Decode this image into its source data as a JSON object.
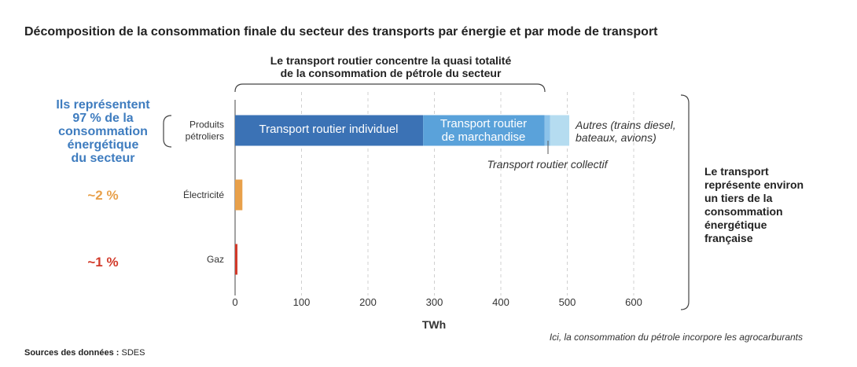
{
  "title": "Décomposition de la consommation finale du secteur des transports par énergie et par mode de transport",
  "annotation_top": [
    "Le transport routier concentre la quasi totalité",
    "de la consommation de pétrole du secteur"
  ],
  "annotation_left": {
    "petrole": [
      "Ils représentent",
      "97 % de la",
      "consommation",
      "énergétique",
      "du secteur"
    ],
    "electricite": "~2 %",
    "gaz": "~1 %"
  },
  "annotation_right": [
    "Le transport",
    "représente environ",
    "un tiers de la",
    "consommation",
    "énergétique",
    "française"
  ],
  "segment_labels": {
    "individuel": [
      "Transport routier individuel"
    ],
    "marchandise": [
      "Transport routier",
      "de marchandise"
    ],
    "collectif": "Transport routier collectif",
    "autres": [
      "Autres (trains diesel,",
      "bateaux, avions)"
    ]
  },
  "note": "Ici, la consommation du pétrole incorpore les agrocarburants",
  "source_label": "Sources des données :",
  "source_value": " SDES",
  "colors": {
    "individuel": "#3b72b5",
    "marchandise": "#5aa2da",
    "collectif": "#8cc3ea",
    "autres": "#b5dcf0",
    "electricite": "#e8a04a",
    "gaz": "#d23a2a",
    "blue_text": "#3e7cbf"
  },
  "chart_data": {
    "type": "bar",
    "orientation": "horizontal",
    "stacked": true,
    "categories": [
      [
        "Produits",
        "pétroliers"
      ],
      [
        "Électricité"
      ],
      [
        "Gaz"
      ]
    ],
    "series": [
      {
        "name": "Transport routier individuel",
        "values": [
          283,
          0,
          0
        ],
        "color": "#3b72b5"
      },
      {
        "name": "Transport routier de marchandise",
        "values": [
          183,
          0,
          0
        ],
        "color": "#5aa2da"
      },
      {
        "name": "Transport routier collectif",
        "values": [
          8,
          0,
          0
        ],
        "color": "#8cc3ea"
      },
      {
        "name": "Autres (trains diesel, bateaux, avions)",
        "values": [
          29,
          0,
          0
        ],
        "color": "#b5dcf0"
      },
      {
        "name": "Électricité",
        "values": [
          0,
          11,
          0
        ],
        "color": "#e8a04a"
      },
      {
        "name": "Gaz",
        "values": [
          0,
          0,
          3
        ],
        "color": "#d23a2a"
      }
    ],
    "xlabel": "TWh",
    "xlim": [
      0,
      650
    ],
    "xticks": [
      0,
      100,
      200,
      300,
      400,
      500,
      600
    ],
    "grid": "vertical dashed"
  }
}
